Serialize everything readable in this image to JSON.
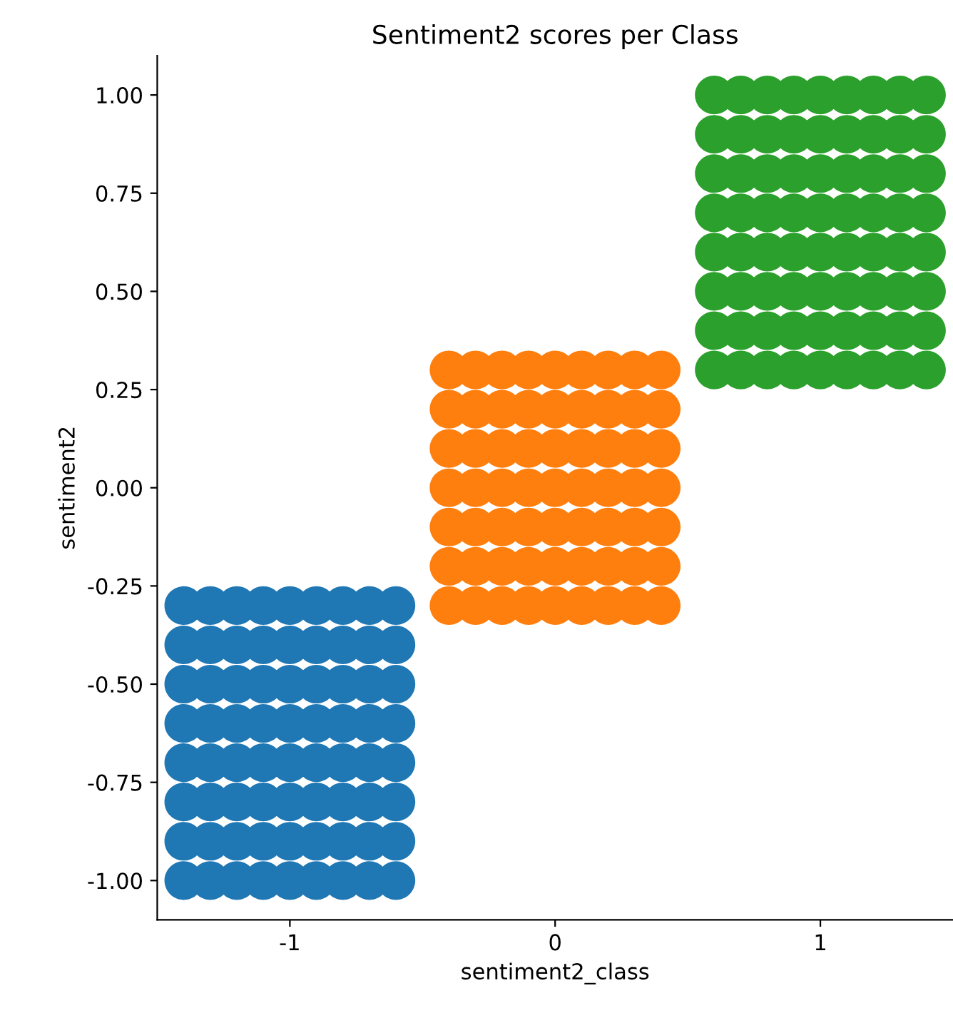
{
  "chart_data": {
    "type": "scatter",
    "title": "Sentiment2 scores per Class",
    "xlabel": "sentiment2_class",
    "ylabel": "sentiment2",
    "marker": "circle",
    "xlim": [
      -1.5,
      1.5
    ],
    "xticks": [
      -1,
      0,
      1
    ],
    "ylim": [
      -1.1,
      1.1
    ],
    "yticks": [
      {
        "value": -1,
        "label": "-1.00"
      },
      {
        "value": -0.75,
        "label": "-0.75"
      },
      {
        "value": -0.5,
        "label": "-0.50"
      },
      {
        "value": -0.25,
        "label": "-0.25"
      },
      {
        "value": 0,
        "label": "0.00"
      },
      {
        "value": 0.25,
        "label": "0.25"
      },
      {
        "value": 0.5,
        "label": "0.50"
      },
      {
        "value": 0.75,
        "label": "0.75"
      },
      {
        "value": 1,
        "label": "1.00"
      }
    ],
    "series": [
      {
        "color": "#1f77b4",
        "x": [
          -1.4,
          -1.3,
          -1.2,
          -1.1,
          -1.0,
          -0.9,
          -0.8,
          -0.7,
          -0.6,
          -1.4,
          -1.3,
          -1.2,
          -1.1,
          -1.0,
          -0.9,
          -0.8,
          -0.7,
          -0.6,
          -1.4,
          -1.3,
          -1.2,
          -1.1,
          -1.0,
          -0.9,
          -0.8,
          -0.7,
          -0.6,
          -1.4,
          -1.3,
          -1.2,
          -1.1,
          -1.0,
          -0.9,
          -0.8,
          -0.7,
          -0.6,
          -1.4,
          -1.3,
          -1.2,
          -1.1,
          -1.0,
          -0.9,
          -0.8,
          -0.7,
          -0.6,
          -1.4,
          -1.3,
          -1.2,
          -1.1,
          -1.0,
          -0.9,
          -0.8,
          -0.7,
          -0.6,
          -1.4,
          -1.3,
          -1.2,
          -1.1,
          -1.0,
          -0.9,
          -0.8,
          -0.7,
          -0.6,
          -1.4,
          -1.3,
          -1.2,
          -1.1,
          -1.0,
          -0.9,
          -0.8,
          -0.7,
          -0.6
        ],
        "values": [
          -1.0,
          -1.0,
          -1.0,
          -1.0,
          -1.0,
          -1.0,
          -1.0,
          -1.0,
          -1.0,
          -0.9,
          -0.9,
          -0.9,
          -0.9,
          -0.9,
          -0.9,
          -0.9,
          -0.9,
          -0.9,
          -0.8,
          -0.8,
          -0.8,
          -0.8,
          -0.8,
          -0.8,
          -0.8,
          -0.8,
          -0.8,
          -0.7,
          -0.7,
          -0.7,
          -0.7,
          -0.7,
          -0.7,
          -0.7,
          -0.7,
          -0.7,
          -0.6,
          -0.6,
          -0.6,
          -0.6,
          -0.6,
          -0.6,
          -0.6,
          -0.6,
          -0.6,
          -0.5,
          -0.5,
          -0.5,
          -0.5,
          -0.5,
          -0.5,
          -0.5,
          -0.5,
          -0.5,
          -0.4,
          -0.4,
          -0.4,
          -0.4,
          -0.4,
          -0.4,
          -0.4,
          -0.4,
          -0.4,
          -0.3,
          -0.3,
          -0.3,
          -0.3,
          -0.3,
          -0.3,
          -0.3,
          -0.3,
          -0.3
        ]
      },
      {
        "color": "#ff7f0e",
        "x": [
          -0.4,
          -0.3,
          -0.2,
          -0.1,
          0,
          0.1,
          0.2,
          0.3,
          0.4,
          -0.4,
          -0.3,
          -0.2,
          -0.1,
          0,
          0.1,
          0.2,
          0.3,
          0.4,
          -0.4,
          -0.3,
          -0.2,
          -0.1,
          0,
          0.1,
          0.2,
          0.3,
          0.4,
          -0.4,
          -0.3,
          -0.2,
          -0.1,
          0,
          0.1,
          0.2,
          0.3,
          0.4,
          -0.4,
          -0.3,
          -0.2,
          -0.1,
          0,
          0.1,
          0.2,
          0.3,
          0.4,
          -0.4,
          -0.3,
          -0.2,
          -0.1,
          0,
          0.1,
          0.2,
          0.3,
          0.4,
          -0.4,
          -0.3,
          -0.2,
          -0.1,
          0,
          0.1,
          0.2,
          0.3,
          0.4
        ],
        "values": [
          -0.3,
          -0.3,
          -0.3,
          -0.3,
          -0.3,
          -0.3,
          -0.3,
          -0.3,
          -0.3,
          -0.2,
          -0.2,
          -0.2,
          -0.2,
          -0.2,
          -0.2,
          -0.2,
          -0.2,
          -0.2,
          -0.1,
          -0.1,
          -0.1,
          -0.1,
          -0.1,
          -0.1,
          -0.1,
          -0.1,
          -0.1,
          0,
          0,
          0,
          0,
          0,
          0,
          0,
          0,
          0,
          0.1,
          0.1,
          0.1,
          0.1,
          0.1,
          0.1,
          0.1,
          0.1,
          0.1,
          0.2,
          0.2,
          0.2,
          0.2,
          0.2,
          0.2,
          0.2,
          0.2,
          0.2,
          0.3,
          0.3,
          0.3,
          0.3,
          0.3,
          0.3,
          0.3,
          0.3,
          0.3
        ]
      },
      {
        "color": "#2ca02c",
        "x": [
          0.6,
          0.7,
          0.8,
          0.9,
          1.0,
          1.1,
          1.2,
          1.3,
          1.4,
          0.6,
          0.7,
          0.8,
          0.9,
          1.0,
          1.1,
          1.2,
          1.3,
          1.4,
          0.6,
          0.7,
          0.8,
          0.9,
          1.0,
          1.1,
          1.2,
          1.3,
          1.4,
          0.6,
          0.7,
          0.8,
          0.9,
          1.0,
          1.1,
          1.2,
          1.3,
          1.4,
          0.6,
          0.7,
          0.8,
          0.9,
          1.0,
          1.1,
          1.2,
          1.3,
          1.4,
          0.6,
          0.7,
          0.8,
          0.9,
          1.0,
          1.1,
          1.2,
          1.3,
          1.4,
          0.6,
          0.7,
          0.8,
          0.9,
          1.0,
          1.1,
          1.2,
          1.3,
          1.4,
          0.6,
          0.7,
          0.8,
          0.9,
          1.0,
          1.1,
          1.2,
          1.3,
          1.4
        ],
        "values": [
          0.3,
          0.3,
          0.3,
          0.3,
          0.3,
          0.3,
          0.3,
          0.3,
          0.3,
          0.4,
          0.4,
          0.4,
          0.4,
          0.4,
          0.4,
          0.4,
          0.4,
          0.4,
          0.5,
          0.5,
          0.5,
          0.5,
          0.5,
          0.5,
          0.5,
          0.5,
          0.5,
          0.6,
          0.6,
          0.6,
          0.6,
          0.6,
          0.6,
          0.6,
          0.6,
          0.6,
          0.7,
          0.7,
          0.7,
          0.7,
          0.7,
          0.7,
          0.7,
          0.7,
          0.7,
          0.8,
          0.8,
          0.8,
          0.8,
          0.8,
          0.8,
          0.8,
          0.8,
          0.8,
          0.9,
          0.9,
          0.9,
          0.9,
          0.9,
          0.9,
          0.9,
          0.9,
          0.9,
          1.0,
          1.0,
          1.0,
          1.0,
          1.0,
          1.0,
          1.0,
          1.0,
          1.0
        ]
      }
    ]
  }
}
